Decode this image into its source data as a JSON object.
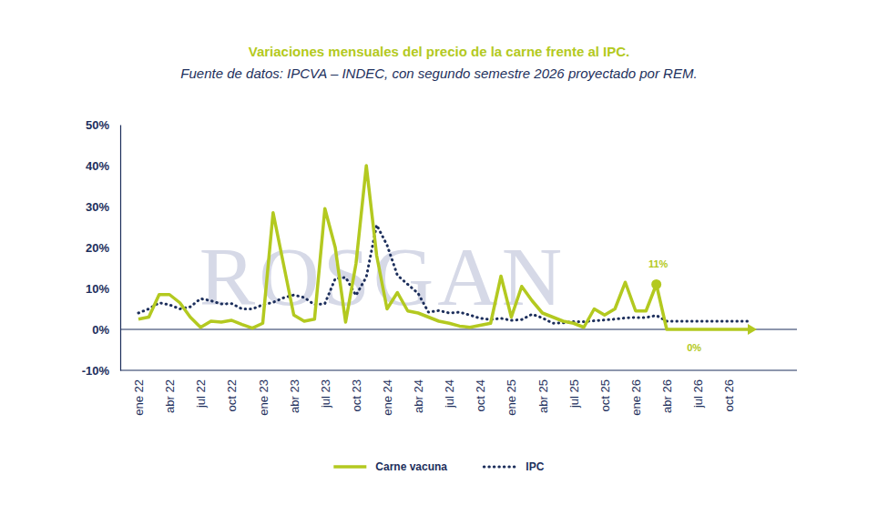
{
  "chart_data": {
    "type": "line",
    "title": "Variaciones mensuales del precio de la carne frente al IPC.",
    "subtitle": "Fuente de datos: IPCVA – INDEC, con segundo semestre 2026 proyectado por REM.",
    "watermark": "ROSGAN",
    "categories": [
      "ene 22",
      null,
      null,
      "abr 22",
      null,
      null,
      "jul 22",
      null,
      null,
      "oct 22",
      null,
      null,
      "ene 23",
      null,
      null,
      "abr 23",
      null,
      null,
      "jul 23",
      null,
      null,
      "oct 23",
      null,
      null,
      "ene 24",
      null,
      null,
      "abr 24",
      null,
      null,
      "jul 24",
      null,
      null,
      "oct 24",
      null,
      null,
      "ene 25",
      null,
      null,
      "abr 25",
      null,
      null,
      "jul 25",
      null,
      null,
      "oct 25",
      null,
      null,
      "ene 26",
      null,
      null,
      "abr 26",
      null,
      null,
      "jul 26",
      null,
      null,
      "oct 26",
      null,
      null
    ],
    "series": [
      {
        "name": "Carne vacuna",
        "color": "#b3c920",
        "line_style": "solid",
        "values": [
          2.5,
          3,
          8.5,
          8.5,
          6.5,
          3,
          0.5,
          2,
          1.8,
          2.2,
          1.2,
          0.3,
          1.5,
          28.5,
          16,
          3.5,
          2,
          2.5,
          29.5,
          20,
          1.8,
          16,
          40,
          18,
          5,
          9,
          4.5,
          4,
          3,
          2,
          1.5,
          0.8,
          0.5,
          1,
          1.5,
          13,
          3,
          10.5,
          7,
          4,
          3,
          2,
          1.5,
          0.5,
          5,
          3.5,
          5,
          11.5,
          4.5,
          4.5,
          11,
          0,
          0,
          0,
          0,
          0,
          0,
          0,
          0,
          0
        ]
      },
      {
        "name": "IPC",
        "color": "#1d2f5c",
        "line_style": "dotted",
        "values": [
          4,
          5,
          6.5,
          6,
          5,
          5.5,
          7.5,
          7,
          6.2,
          6.3,
          5,
          5,
          6,
          6.6,
          7.7,
          8.4,
          7.8,
          6,
          6.3,
          12.4,
          12.7,
          8.3,
          12.8,
          25.5,
          20.6,
          13.2,
          11,
          8.8,
          4.2,
          4.6,
          4,
          4.2,
          3.5,
          2.7,
          2.4,
          2.7,
          2.2,
          2.4,
          3.7,
          2.8,
          1.5,
          1.6,
          1.9,
          1.9,
          2.1,
          2.3,
          2.5,
          2.8,
          2.9,
          2.9,
          3.4,
          2,
          2,
          2,
          2,
          2,
          2,
          2,
          2,
          2
        ]
      }
    ],
    "annotations": [
      {
        "text": "11%",
        "x_index": 50,
        "value": 11
      },
      {
        "text": "0%",
        "x_index": 54,
        "value": 0
      }
    ],
    "ylim": [
      -10,
      50
    ],
    "yticks": [
      {
        "value": -10,
        "label": "-10%"
      },
      {
        "value": 0,
        "label": "0%"
      },
      {
        "value": 10,
        "label": "10%"
      },
      {
        "value": 20,
        "label": "20%"
      },
      {
        "value": 30,
        "label": "30%"
      },
      {
        "value": 40,
        "label": "40%"
      },
      {
        "value": 50,
        "label": "50%"
      }
    ],
    "grid": false,
    "legend": "bottom"
  }
}
